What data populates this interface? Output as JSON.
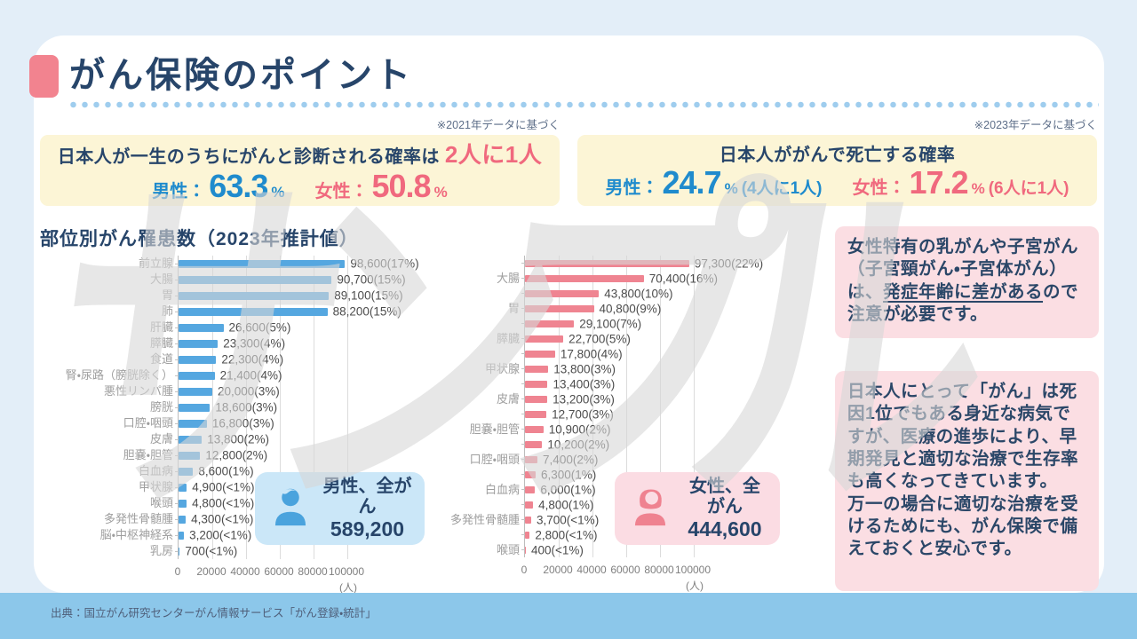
{
  "page": {
    "title": "がん保険のポイント",
    "watermark": "サンプル",
    "source": "出典：国立がん研究センターがん情報サービス「がん登録・統計」",
    "colors": {
      "accent_navy": "#27456a",
      "accent_blue": "#1f8bcd",
      "accent_pink": "#f0697e",
      "male_bar": "#55a7e0",
      "female_bar": "#ef8491",
      "yellow_box": "#fcf5d6",
      "pink_box": "#fbdee3",
      "footer_band": "#8cc7ea"
    }
  },
  "stat_boxes": {
    "left": {
      "note": "※2021年データに基づく",
      "heading": "日本人が一生のうちにがんと診断される確率は",
      "heading_highlight": "2人に1人",
      "male_label": "男性：",
      "male_value": "63.3",
      "male_unit": "%",
      "female_label": "女性：",
      "female_value": "50.8",
      "female_unit": "%"
    },
    "right": {
      "note": "※2023年データに基づく",
      "heading": "日本人ががんで死亡する確率",
      "male_label": "男性：",
      "male_value": "24.7",
      "male_unit": "%",
      "male_suffix": "(4人に1人)",
      "female_label": "女性：",
      "female_value": "17.2",
      "female_unit": "%",
      "female_suffix": "(6人に1人)"
    }
  },
  "charts_section_title": "部位別がん罹患数（2023年推計値）",
  "chart_data": [
    {
      "type": "bar",
      "orientation": "horizontal",
      "group": "男性",
      "bar_color": "#55a7e0",
      "categories": [
        "前立腺",
        "大腸",
        "胃",
        "肺",
        "肝臓",
        "膵臓",
        "食道",
        "腎・尿路（膀胱除く）",
        "悪性リンパ腫",
        "膀胱",
        "口腔・咽頭",
        "皮膚",
        "胆嚢・胆管",
        "白血病",
        "甲状腺",
        "喉頭",
        "多発性骨髄腫",
        "脳・中枢神経系",
        "乳房"
      ],
      "values": [
        98600,
        90700,
        89100,
        88200,
        26600,
        23300,
        22300,
        21400,
        20000,
        18600,
        16800,
        13800,
        12800,
        8600,
        4900,
        4800,
        4300,
        3200,
        700
      ],
      "value_labels": [
        "98,600(17%)",
        "90,700(15%)",
        "89,100(15%)",
        "88,200(15%)",
        "26,600(5%)",
        "23,300(4%)",
        "22,300(4%)",
        "21,400(4%)",
        "20,000(3%)",
        "18,600(3%)",
        "16,800(3%)",
        "13,800(2%)",
        "12,800(2%)",
        "8,600(1%)",
        "4,900(<1%)",
        "4,800(<1%)",
        "4,300(<1%)",
        "3,200(<1%)",
        "700(<1%)"
      ],
      "xlim": [
        0,
        100000
      ],
      "x_ticks": [
        0,
        20000,
        40000,
        60000,
        80000,
        100000
      ],
      "x_tick_labels": [
        "0",
        "20000",
        "40000",
        "60000",
        "80000",
        "100000"
      ],
      "axis_unit": "(人)",
      "grid": true,
      "total_badge": {
        "label": "男性、全がん",
        "value": "589,200"
      }
    },
    {
      "type": "bar",
      "orientation": "horizontal",
      "group": "女性",
      "bar_color": "#ef8491",
      "categories": [
        "",
        "大腸",
        "",
        "胃",
        "",
        "膵臓",
        "",
        "甲状腺",
        "",
        "皮膚",
        "",
        "胆嚢・胆管",
        "",
        "口腔・咽頭",
        "",
        "白血病",
        "",
        "多発性骨髄腫",
        "",
        "喉頭"
      ],
      "values": [
        97300,
        70400,
        43800,
        40800,
        29100,
        22700,
        17800,
        13800,
        13400,
        13200,
        12700,
        10900,
        10200,
        7400,
        6300,
        6000,
        4800,
        3700,
        2800,
        400
      ],
      "value_labels": [
        "97,300(22%)",
        "70,400(16%)",
        "43,800(10%)",
        "40,800(9%)",
        "29,100(7%)",
        "22,700(5%)",
        "17,800(4%)",
        "13,800(3%)",
        "13,400(3%)",
        "13,200(3%)",
        "12,700(3%)",
        "10,900(2%)",
        "10,200(2%)",
        "7,400(2%)",
        "6,300(1%)",
        "6,000(1%)",
        "4,800(1%)",
        "3,700(<1%)",
        "2,800(<1%)",
        "400(<1%)"
      ],
      "xlim": [
        0,
        100000
      ],
      "x_ticks": [
        0,
        20000,
        40000,
        60000,
        80000,
        100000
      ],
      "x_tick_labels": [
        "0",
        "20000",
        "40000",
        "60000",
        "80000",
        "100000"
      ],
      "axis_unit": "(人)",
      "grid": true,
      "total_badge": {
        "label": "女性、全がん",
        "value": "444,600"
      }
    }
  ],
  "sidebar": {
    "note1_part1": "女性特有の乳がんや子宮がん（子宮頸がん・子宮体がん）は、",
    "note1_underlined": "発症年齢に差がある",
    "note1_part2": "ので注意が必要です。",
    "note2_para1": "日本人にとって「がん」は死因1位でもある身近な病気ですが、医療の進歩により、早期発見と適切な治療で生存率も高くなってきています。",
    "note2_para2": "万一の場合に適切な治療を受けるためにも、がん保険で備えておくと安心です。"
  }
}
